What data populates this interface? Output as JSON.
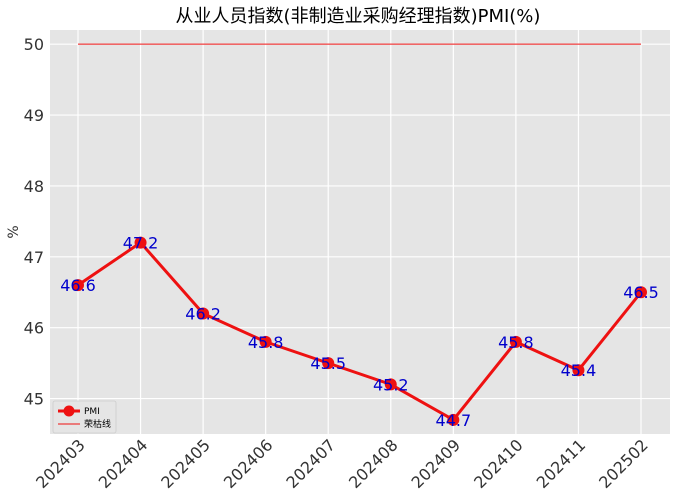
{
  "chart_data": {
    "type": "line",
    "title": "从业人员指数(非制造业采购经理指数)PMI(%)",
    "xlabel": "",
    "ylabel": "%",
    "categories": [
      "202403",
      "202404",
      "202405",
      "202406",
      "202407",
      "202408",
      "202409",
      "202410",
      "202411",
      "202502"
    ],
    "series": [
      {
        "name": "PMI",
        "values": [
          46.6,
          47.2,
          46.2,
          45.8,
          45.5,
          45.2,
          44.7,
          45.8,
          45.4,
          46.5
        ],
        "color": "#ee1111",
        "data_labels": [
          "46.6",
          "47.2",
          "46.2",
          "45.8",
          "45.5",
          "45.2",
          "44.7",
          "45.8",
          "45.4",
          "46.5"
        ]
      },
      {
        "name": "荣枯线",
        "values": [
          50,
          50,
          50,
          50,
          50,
          50,
          50,
          50,
          50,
          50
        ],
        "color": "#ee1111"
      }
    ],
    "ylim": [
      44.5,
      50.2
    ],
    "yticks": [
      "45",
      "46",
      "47",
      "48",
      "49",
      "50"
    ],
    "grid": true,
    "legend_position": "bottom-left",
    "background": "#e5e5e5",
    "label_color": "#0000cc"
  }
}
